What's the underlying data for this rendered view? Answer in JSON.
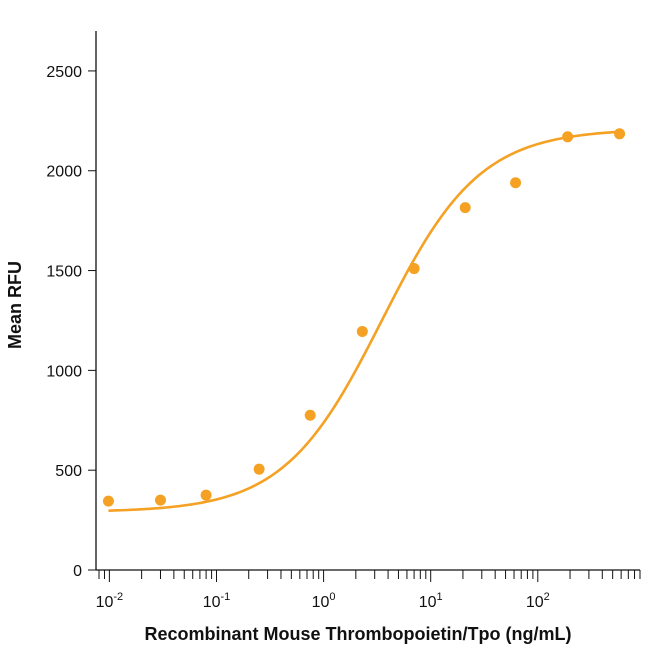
{
  "chart_data": {
    "type": "scatter",
    "title": "",
    "xlabel": "Recombinant Mouse Thrombopoietin/Tpo (ng/mL)",
    "ylabel": "Mean RFU",
    "x_scale": "log",
    "xlim": [
      0.0075,
      900
    ],
    "ylim": [
      0,
      2700
    ],
    "grid": false,
    "x_ticks": [
      {
        "value": 0.01,
        "base": "10",
        "exp": "-2"
      },
      {
        "value": 0.1,
        "base": "10",
        "exp": "-1"
      },
      {
        "value": 1,
        "base": "10",
        "exp": "0"
      },
      {
        "value": 10,
        "base": "10",
        "exp": "1"
      },
      {
        "value": 100,
        "base": "10",
        "exp": "2"
      }
    ],
    "y_ticks": [
      {
        "value": 0,
        "label": "0"
      },
      {
        "value": 500,
        "label": "500"
      },
      {
        "value": 1000,
        "label": "1000"
      },
      {
        "value": 1500,
        "label": "1500"
      },
      {
        "value": 2000,
        "label": "2000"
      },
      {
        "value": 2500,
        "label": "2500"
      }
    ],
    "series": [
      {
        "color": "#f4a124",
        "points": [
          {
            "x": 0.0098,
            "y": 345
          },
          {
            "x": 0.03,
            "y": 350
          },
          {
            "x": 0.08,
            "y": 375
          },
          {
            "x": 0.25,
            "y": 505
          },
          {
            "x": 0.75,
            "y": 775
          },
          {
            "x": 2.3,
            "y": 1195
          },
          {
            "x": 7,
            "y": 1510
          },
          {
            "x": 21,
            "y": 1815
          },
          {
            "x": 62,
            "y": 1940
          },
          {
            "x": 190,
            "y": 2170
          },
          {
            "x": 580,
            "y": 2185
          }
        ],
        "fit": {
          "bottom": 290,
          "top": 2210,
          "ec50": 3.5,
          "hill": 0.95
        }
      }
    ]
  }
}
